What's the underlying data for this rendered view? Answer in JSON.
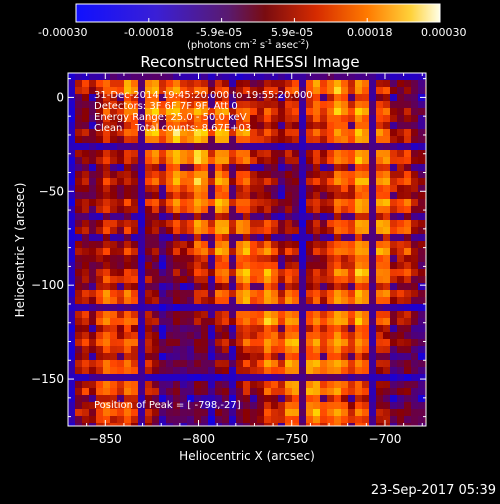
{
  "colorbar": {
    "tick_labels": [
      "-0.00030",
      "-0.00018",
      "-5.9e-05",
      "5.9e-05",
      "0.00018",
      "0.00030"
    ],
    "units_label": "(photons cm",
    "units_sup1": "-2",
    "units_mid": " s",
    "units_sup2": "-1",
    "units_end": " asec",
    "units_sup3": "-2",
    "units_close": ")"
  },
  "plot": {
    "title": "Reconstructed RHESSI Image",
    "annotation_lines": [
      "31-Dec-2014 19:45:20.000 to 19:55:20.000",
      "Detectors: 3F 6F 7F 9F, Att 0",
      "Energy Range: 25.0 - 50.0 keV",
      "Clean    Total counts: 8.67E+03"
    ],
    "peak_label": "Position of Peak = [ -798,-27]",
    "xlabel": "Heliocentric X (arcsec)",
    "ylabel": "Heliocentric Y (arcsec)",
    "x_ticks": [
      {
        "label": "−850",
        "value": -850
      },
      {
        "label": "−800",
        "value": -800
      },
      {
        "label": "−750",
        "value": -750
      },
      {
        "label": "−700",
        "value": -700
      }
    ],
    "y_ticks": [
      {
        "label": "0",
        "value": 0
      },
      {
        "label": "−50",
        "value": -50
      },
      {
        "label": "−100",
        "value": -100
      },
      {
        "label": "−150",
        "value": -150
      }
    ],
    "xlim": [
      -870,
      -678
    ],
    "ylim": [
      -175,
      13
    ],
    "colormap": [
      "#0000ff",
      "#4b0082",
      "#8b0000",
      "#ff4500",
      "#ff8c00",
      "#ffd700",
      "#ffffe0"
    ]
  },
  "footer": {
    "timestamp": "23-Sep-2017 05:39"
  }
}
